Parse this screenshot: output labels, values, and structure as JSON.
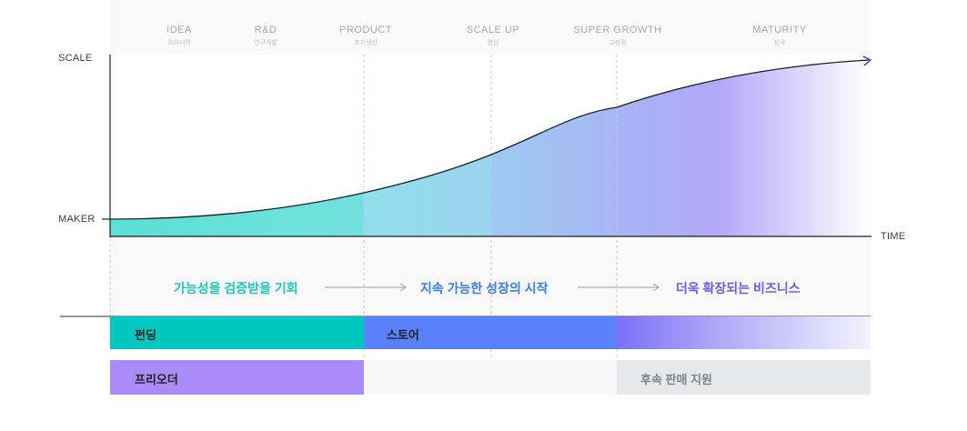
{
  "stages": [
    {
      "en": "IDEA",
      "ko": "아이디어"
    },
    {
      "en": "R&D",
      "ko": "연구개발"
    },
    {
      "en": "PRODUCT",
      "ko": "초기생산"
    },
    {
      "en": "SCALE UP",
      "ko": "양산"
    },
    {
      "en": "SUPER GROWTH",
      "ko": "고성장"
    },
    {
      "en": "MATURITY",
      "ko": "성숙"
    }
  ],
  "axes": {
    "y_label": "SCALE",
    "y_origin_label": "MAKER",
    "x_label": "TIME"
  },
  "phases": [
    {
      "text": "가능성을 검증받을 기회",
      "color": "#22c5c0"
    },
    {
      "text": "지속 가능한 성장의 시작",
      "color": "#3a7bf0"
    },
    {
      "text": "더욱 확장되는 비즈니스",
      "color": "#6b5cf0"
    }
  ],
  "bars": {
    "funding": "펀딩",
    "store": "스토어",
    "preorder": "프리오더",
    "after_sales": "후속 판매 지원"
  },
  "colors": {
    "teal": "#00c8c0",
    "blue": "#5b81f8",
    "purple": "#a98cf5",
    "gray": "#e6e8eb",
    "curve": "#1b1f24"
  }
}
